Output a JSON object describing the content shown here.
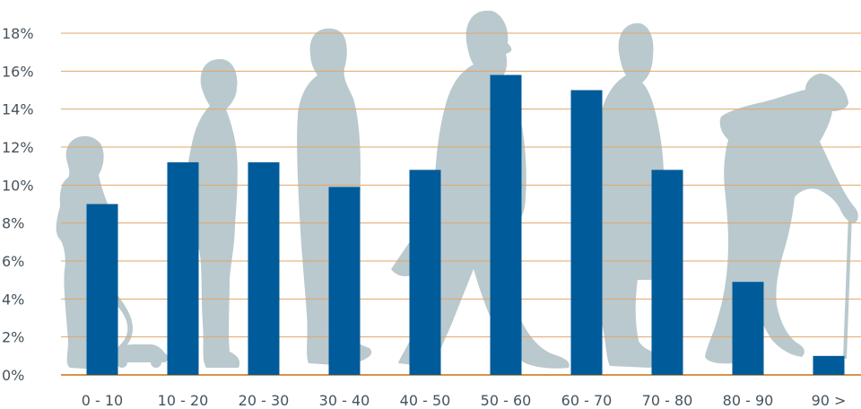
{
  "chart_data": {
    "type": "bar",
    "title": "",
    "xlabel": "",
    "ylabel": "",
    "categories": [
      "0 - 10",
      "10 - 20",
      "20 - 30",
      "30 - 40",
      "40 - 50",
      "50 - 60",
      "60 - 70",
      "70 - 80",
      "80 - 90",
      "90 >"
    ],
    "values": [
      9.0,
      11.2,
      11.2,
      9.9,
      10.8,
      15.8,
      15.0,
      10.8,
      4.9,
      1.0
    ],
    "ylim": [
      0,
      18
    ],
    "yticks": [
      "0%",
      "2%",
      "4%",
      "6%",
      "8%",
      "10%",
      "12%",
      "14%",
      "16%",
      "18%"
    ],
    "grid": true,
    "colors": {
      "bar": "#005b9a",
      "grid": "#e0a66a",
      "baseline": "#d4944f",
      "silhouette": "#b9c9cd",
      "text": "#46535c"
    },
    "background_icons": [
      "child-with-toy-car-silhouette",
      "teen-silhouette",
      "adult-silhouette",
      "walking-man-with-briefcase-silhouette",
      "elderly-man-with-cane-silhouette"
    ]
  }
}
